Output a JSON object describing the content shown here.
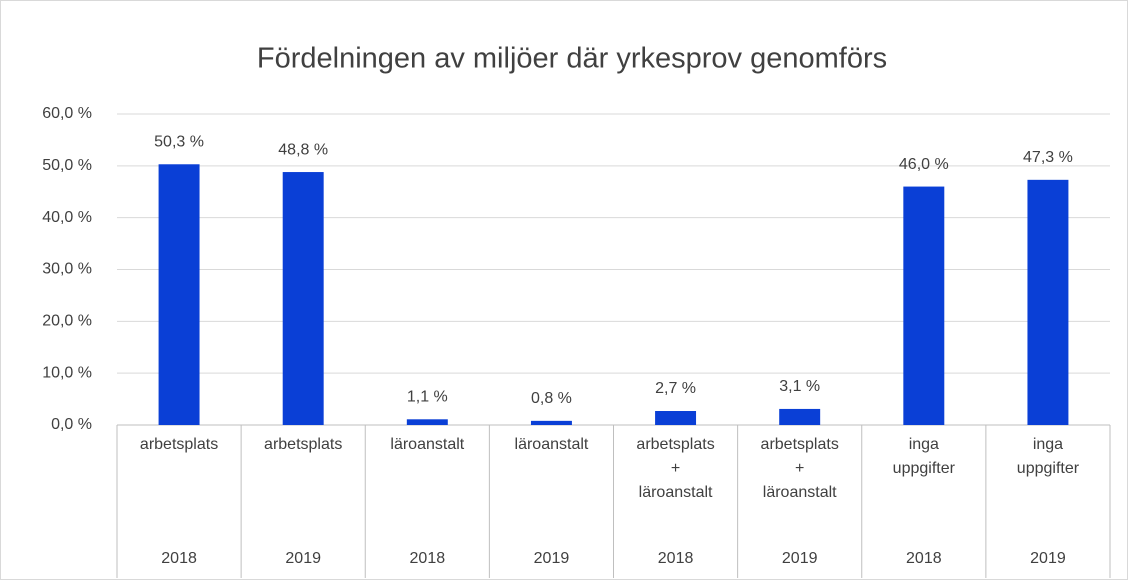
{
  "chart_data": {
    "type": "bar",
    "title": "Fördelningen av miljöer där yrkesprov genomförs",
    "categories": [
      "arbetsplats",
      "arbetsplats",
      "läroanstalt",
      "läroanstalt",
      "arbetsplats + läroanstalt",
      "arbetsplats + läroanstalt",
      "inga uppgifter",
      "inga uppgifter"
    ],
    "years": [
      "2018",
      "2019",
      "2018",
      "2019",
      "2018",
      "2019",
      "2018",
      "2019"
    ],
    "values": [
      50.3,
      48.8,
      1.1,
      0.8,
      2.7,
      3.1,
      46.0,
      47.3
    ],
    "value_labels": [
      "50,3 %",
      "48,8 %",
      "1,1 %",
      "0,8 %",
      "2,7 %",
      "3,1 %",
      "46,0 %",
      "47,3 %"
    ],
    "color": "#0a3fd6",
    "ylim": [
      0,
      60
    ],
    "yticks": [
      {
        "value": 0,
        "label": "0,0 %"
      },
      {
        "value": 10,
        "label": "10,0 %"
      },
      {
        "value": 20,
        "label": "20,0 %"
      },
      {
        "value": 30,
        "label": "30,0 %"
      },
      {
        "value": 40,
        "label": "40,0 %"
      },
      {
        "value": 50,
        "label": "50,0 %"
      },
      {
        "value": 60,
        "label": "60,0 %"
      }
    ],
    "grid": true
  }
}
